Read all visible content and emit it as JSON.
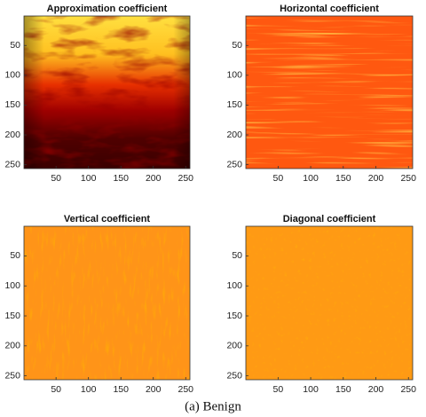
{
  "chart_data": [
    {
      "type": "image",
      "title": "Approximation coefficient",
      "xlim": [
        0.5,
        256.5
      ],
      "ylim": [
        256.5,
        0.5
      ],
      "xticks": [
        50,
        100,
        150,
        200,
        250
      ],
      "yticks": [
        50,
        100,
        150,
        200,
        250
      ]
    },
    {
      "type": "image",
      "title": "Horizontal coefficient",
      "xlim": [
        0.5,
        256.5
      ],
      "ylim": [
        256.5,
        0.5
      ],
      "xticks": [
        50,
        100,
        150,
        200,
        250
      ],
      "yticks": [
        50,
        100,
        150,
        200,
        250
      ]
    },
    {
      "type": "image",
      "title": "Vertical coefficient",
      "xlim": [
        0.5,
        256.5
      ],
      "ylim": [
        256.5,
        0.5
      ],
      "xticks": [
        50,
        100,
        150,
        200,
        250
      ],
      "yticks": [
        50,
        100,
        150,
        200,
        250
      ]
    },
    {
      "type": "image",
      "title": "Diagonal coefficient",
      "xlim": [
        0.5,
        256.5
      ],
      "ylim": [
        256.5,
        0.5
      ],
      "xticks": [
        50,
        100,
        150,
        200,
        250
      ],
      "yticks": [
        50,
        100,
        150,
        200,
        250
      ]
    }
  ],
  "caption": "(a) Benign"
}
